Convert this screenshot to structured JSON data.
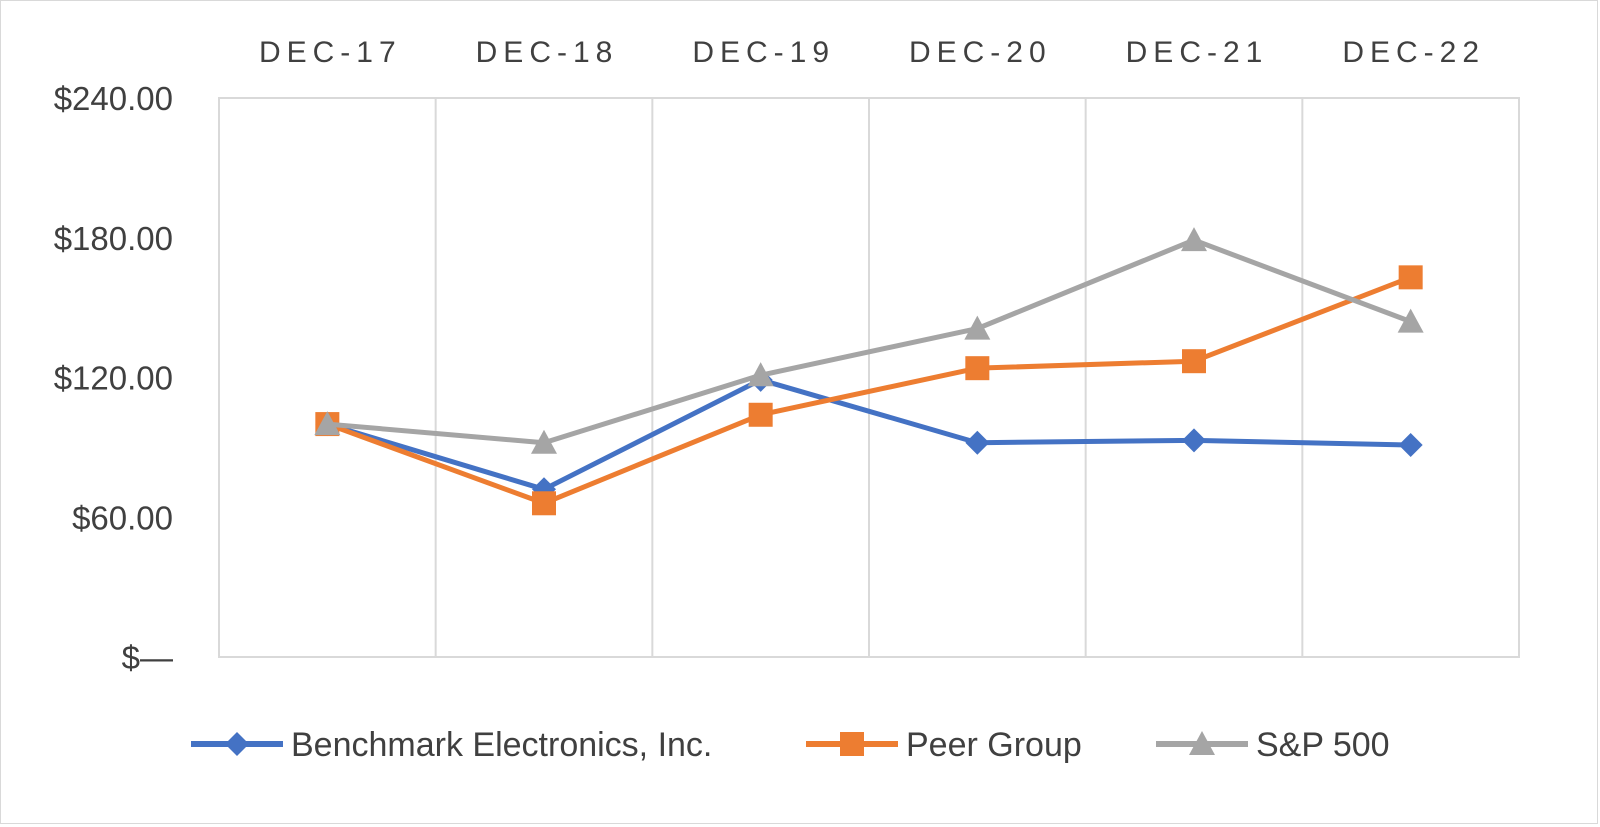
{
  "chart_data": {
    "type": "line",
    "title": "",
    "xlabel": "",
    "ylabel": "",
    "categories": [
      "DEC-17",
      "DEC-18",
      "DEC-19",
      "DEC-20",
      "DEC-21",
      "DEC-22"
    ],
    "ylim": [
      0,
      240
    ],
    "yticks": [
      0,
      60,
      120,
      180,
      240
    ],
    "ytick_labels": [
      "$—",
      "$60.00",
      "$120.00",
      "$180.00",
      "$240.00"
    ],
    "x_axis_position": "top",
    "grid": "vertical",
    "legend_position": "bottom",
    "series": [
      {
        "name": "Benchmark Electronics, Inc.",
        "color": "#4472c4",
        "marker": "diamond",
        "values": [
          100,
          72,
          119,
          92,
          93,
          91
        ]
      },
      {
        "name": "Peer Group",
        "color": "#ed7d31",
        "marker": "square",
        "values": [
          100,
          66,
          104,
          124,
          127,
          163
        ]
      },
      {
        "name": "S&P 500",
        "color": "#a5a5a5",
        "marker": "triangle",
        "values": [
          100,
          92,
          121,
          141,
          179,
          144
        ]
      }
    ]
  }
}
